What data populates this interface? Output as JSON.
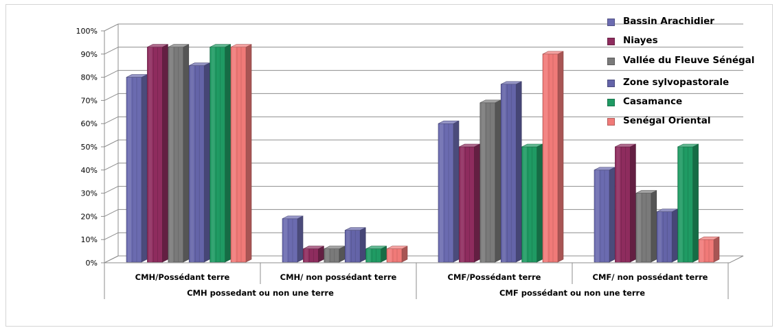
{
  "chart_data": {
    "type": "bar",
    "title": "",
    "group_labels": [
      "CMH possedant ou non une terre",
      "CMF possédant ou non une terre"
    ],
    "categories": [
      "CMH/Possédant terre",
      "CMH/ non possédant  terre",
      "CMF/Possédant terre",
      "CMF/ non possédant  terre"
    ],
    "ylim": [
      0,
      100
    ],
    "y_ticks": [
      "0%",
      "10%",
      "20%",
      "30%",
      "40%",
      "50%",
      "60%",
      "70%",
      "80%",
      "90%",
      "100%"
    ],
    "grid": true,
    "legend_position": "right",
    "series": [
      {
        "name": "Bassin Arachidier",
        "color": "#6b6bb0",
        "values": [
          80,
          19,
          60,
          40
        ]
      },
      {
        "name": "Niayes",
        "color": "#8e2c5e",
        "values": [
          93,
          6,
          50,
          50
        ]
      },
      {
        "name": "Vallée du Fleuve Sénégal",
        "color": "#7a7a7a",
        "values": [
          93,
          6,
          69,
          30
        ]
      },
      {
        "name": "Zone sylvopastorale",
        "color": "#6464a8",
        "values": [
          85,
          14,
          77,
          22
        ]
      },
      {
        "name": "Casamance",
        "color": "#1f9a63",
        "values": [
          93,
          6,
          50,
          50
        ]
      },
      {
        "name": "Senégal Oriental",
        "color": "#f07a78",
        "values": [
          93,
          6,
          90,
          10
        ]
      }
    ]
  }
}
